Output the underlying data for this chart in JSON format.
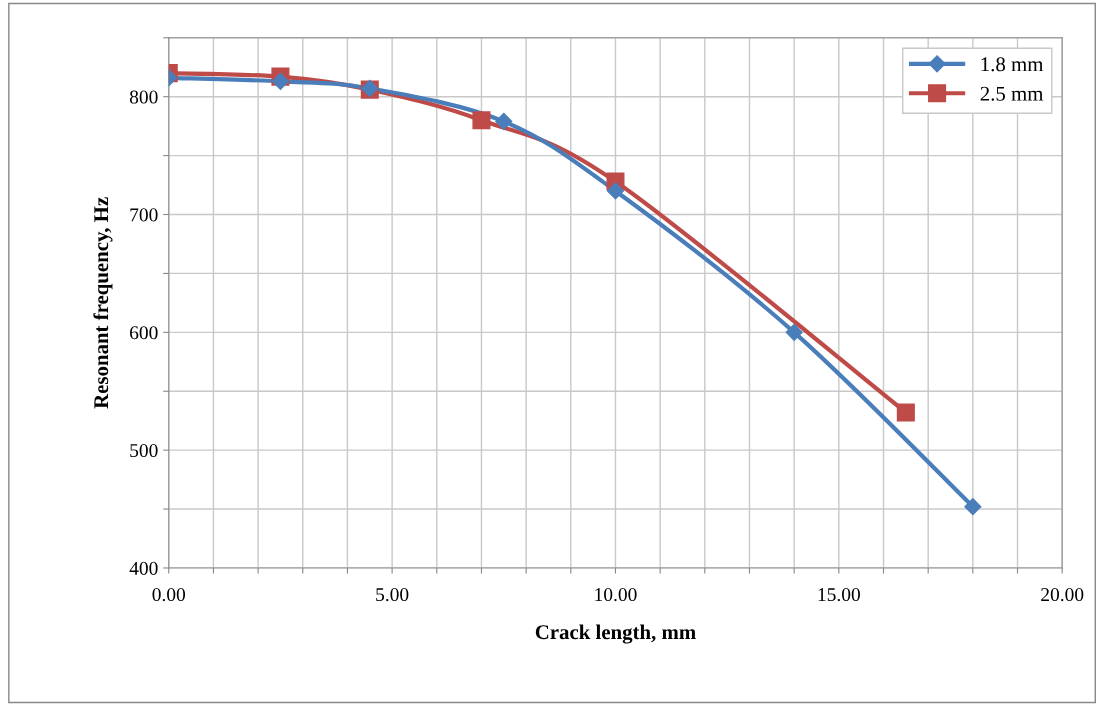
{
  "chart_data": {
    "type": "line",
    "xlabel": "Crack length, mm",
    "ylabel": "Resonant frequency, Hz",
    "xlim": [
      0,
      20
    ],
    "ylim": [
      400,
      850
    ],
    "xticks": [
      {
        "value": 0,
        "label": "0.00"
      },
      {
        "value": 1,
        "label": null
      },
      {
        "value": 2,
        "label": null
      },
      {
        "value": 3,
        "label": null
      },
      {
        "value": 4,
        "label": null
      },
      {
        "value": 5,
        "label": "5.00"
      },
      {
        "value": 6,
        "label": null
      },
      {
        "value": 7,
        "label": null
      },
      {
        "value": 8,
        "label": null
      },
      {
        "value": 9,
        "label": null
      },
      {
        "value": 10,
        "label": "10.00"
      },
      {
        "value": 11,
        "label": null
      },
      {
        "value": 12,
        "label": null
      },
      {
        "value": 13,
        "label": null
      },
      {
        "value": 14,
        "label": null
      },
      {
        "value": 15,
        "label": "15.00"
      },
      {
        "value": 16,
        "label": null
      },
      {
        "value": 17,
        "label": null
      },
      {
        "value": 18,
        "label": null
      },
      {
        "value": 19,
        "label": null
      },
      {
        "value": 20,
        "label": "20.00"
      }
    ],
    "yticks": [
      400,
      {
        "value": 450,
        "label": null
      },
      500,
      {
        "value": 550,
        "label": null
      },
      600,
      {
        "value": 650,
        "label": null
      },
      700,
      {
        "value": 750,
        "label": null
      },
      800,
      {
        "value": 850,
        "label": null
      }
    ],
    "grid": true,
    "legend": "top right",
    "series": [
      {
        "name": "1.8 mm",
        "color": "#4a7ebb",
        "marker": "diamond",
        "x": [
          0,
          2.5,
          4.5,
          7.5,
          10,
          14,
          18
        ],
        "values": [
          816,
          813,
          807,
          779,
          720,
          600,
          452
        ]
      },
      {
        "name": "2.5 mm",
        "color": "#be4b48",
        "marker": "square",
        "x": [
          0,
          2.5,
          4.5,
          7,
          10,
          16.5
        ],
        "values": [
          820,
          817,
          806,
          780,
          728,
          532
        ]
      }
    ]
  }
}
